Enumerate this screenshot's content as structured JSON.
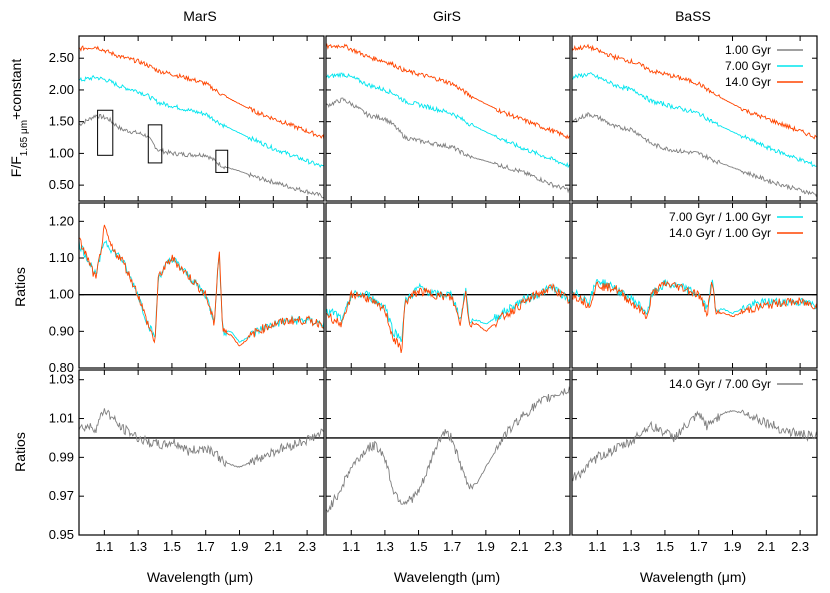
{
  "figure": {
    "columns": [
      "MarS",
      "GirS",
      "BaSS"
    ],
    "ylabel_top_prefix": "F/F",
    "ylabel_top_sub": "1.65 μm",
    "ylabel_top_suffix": "+constant",
    "ylabel_ratio": "Ratios",
    "xlabel": "Wavelength (μm)"
  },
  "colors": {
    "age_1": "#808080",
    "age_7": "#00e5ee",
    "age_14": "#ff4500",
    "ratio_14_7": "#808080"
  },
  "chart_data": [
    {
      "type": "line",
      "panel_row": "spectra",
      "xlim": [
        0.95,
        2.4
      ],
      "ylim": [
        0.25,
        2.85
      ],
      "xticks": [
        "1.1",
        "1.3",
        "1.5",
        "1.7",
        "1.9",
        "2.1",
        "2.3"
      ],
      "yticks": [
        "0.50",
        "1.00",
        "1.50",
        "2.00",
        "2.50"
      ],
      "legend_position": "top-right",
      "series": [
        {
          "name": "1.00 Gyr",
          "color_key": "age_1",
          "x": [
            0.95,
            1.05,
            1.12,
            1.2,
            1.3,
            1.35,
            1.42,
            1.5,
            1.6,
            1.7,
            1.8,
            1.9,
            2.0,
            2.1,
            2.2,
            2.3,
            2.4
          ],
          "values": {
            "MarS": [
              1.45,
              1.6,
              1.55,
              1.38,
              1.32,
              1.28,
              1.05,
              1.0,
              0.98,
              0.98,
              0.8,
              0.72,
              0.62,
              0.55,
              0.47,
              0.4,
              0.32
            ],
            "GirS": [
              1.75,
              1.85,
              1.75,
              1.6,
              1.55,
              1.45,
              1.25,
              1.2,
              1.15,
              1.1,
              0.95,
              0.88,
              0.8,
              0.72,
              0.62,
              0.5,
              0.42
            ],
            "BaSS": [
              1.5,
              1.62,
              1.55,
              1.42,
              1.38,
              1.3,
              1.15,
              1.08,
              1.03,
              1.0,
              0.88,
              0.78,
              0.68,
              0.58,
              0.5,
              0.42,
              0.35
            ]
          }
        },
        {
          "name": "7.00 Gyr",
          "color_key": "age_7",
          "x": [
            0.95,
            1.05,
            1.12,
            1.2,
            1.3,
            1.35,
            1.42,
            1.5,
            1.6,
            1.7,
            1.8,
            1.9,
            2.0,
            2.1,
            2.2,
            2.3,
            2.4
          ],
          "values": {
            "MarS": [
              2.15,
              2.2,
              2.15,
              2.05,
              1.98,
              1.92,
              1.8,
              1.75,
              1.68,
              1.62,
              1.45,
              1.32,
              1.2,
              1.08,
              0.98,
              0.88,
              0.78
            ],
            "GirS": [
              2.2,
              2.25,
              2.18,
              2.08,
              2.0,
              1.95,
              1.82,
              1.77,
              1.7,
              1.63,
              1.47,
              1.34,
              1.22,
              1.1,
              1.0,
              0.9,
              0.8
            ],
            "BaSS": [
              2.2,
              2.25,
              2.18,
              2.08,
              2.0,
              1.95,
              1.82,
              1.77,
              1.7,
              1.63,
              1.47,
              1.34,
              1.22,
              1.1,
              1.0,
              0.9,
              0.8
            ]
          }
        },
        {
          "name": "14.0 Gyr",
          "color_key": "age_14",
          "x": [
            0.95,
            1.05,
            1.12,
            1.2,
            1.3,
            1.35,
            1.42,
            1.5,
            1.6,
            1.7,
            1.8,
            1.9,
            2.0,
            2.1,
            2.2,
            2.3,
            2.4
          ],
          "values": {
            "MarS": [
              2.65,
              2.68,
              2.6,
              2.52,
              2.45,
              2.4,
              2.3,
              2.25,
              2.18,
              2.1,
              1.92,
              1.78,
              1.65,
              1.55,
              1.45,
              1.35,
              1.25
            ],
            "GirS": [
              2.68,
              2.7,
              2.62,
              2.52,
              2.45,
              2.4,
              2.3,
              2.25,
              2.18,
              2.1,
              1.92,
              1.78,
              1.65,
              1.55,
              1.45,
              1.35,
              1.25
            ],
            "BaSS": [
              2.65,
              2.68,
              2.6,
              2.52,
              2.45,
              2.4,
              2.3,
              2.25,
              2.18,
              2.1,
              1.92,
              1.78,
              1.65,
              1.55,
              1.45,
              1.35,
              1.25
            ]
          }
        }
      ],
      "annotation_boxes_MarS": [
        {
          "x": [
            1.06,
            1.15
          ],
          "y": [
            0.97,
            1.68
          ]
        },
        {
          "x": [
            1.36,
            1.44
          ],
          "y": [
            0.85,
            1.45
          ]
        },
        {
          "x": [
            1.76,
            1.83
          ],
          "y": [
            0.7,
            1.05
          ]
        }
      ]
    },
    {
      "type": "line",
      "panel_row": "ratios_vs_1gyr",
      "xlim": [
        0.95,
        2.4
      ],
      "ylim": [
        0.8,
        1.25
      ],
      "xticks": [
        "1.1",
        "1.3",
        "1.5",
        "1.7",
        "1.9",
        "2.1",
        "2.3"
      ],
      "yticks": [
        "0.80",
        "0.90",
        "1.00",
        "1.10",
        "1.20"
      ],
      "reference_line": 1.0,
      "legend_position": "top-right",
      "series": [
        {
          "name": "7.00 Gyr / 1.00 Gyr",
          "color_key": "age_7",
          "x": [
            0.95,
            1.0,
            1.05,
            1.1,
            1.15,
            1.2,
            1.25,
            1.3,
            1.35,
            1.4,
            1.42,
            1.5,
            1.6,
            1.7,
            1.75,
            1.78,
            1.8,
            1.85,
            1.9,
            2.0,
            2.1,
            2.2,
            2.3,
            2.4
          ],
          "values": {
            "MarS": [
              1.14,
              1.1,
              1.05,
              1.15,
              1.12,
              1.1,
              1.05,
              1.0,
              0.93,
              0.88,
              1.05,
              1.1,
              1.05,
              1.0,
              0.93,
              1.12,
              0.9,
              0.9,
              0.87,
              0.9,
              0.92,
              0.93,
              0.93,
              0.92
            ],
            "GirS": [
              0.95,
              0.95,
              0.93,
              1.0,
              1.0,
              1.0,
              0.98,
              0.97,
              0.9,
              0.88,
              0.98,
              1.02,
              1.0,
              1.0,
              0.93,
              1.02,
              0.93,
              0.93,
              0.92,
              0.95,
              0.98,
              1.0,
              1.02,
              0.98
            ],
            "BaSS": [
              1.0,
              1.0,
              0.98,
              1.04,
              1.03,
              1.02,
              1.0,
              0.99,
              0.97,
              0.95,
              1.0,
              1.03,
              1.02,
              1.0,
              0.96,
              1.04,
              0.96,
              0.96,
              0.95,
              0.97,
              0.98,
              0.98,
              0.98,
              0.97
            ]
          }
        },
        {
          "name": "14.0 Gyr / 1.00 Gyr",
          "color_key": "age_14",
          "x": [
            0.95,
            1.0,
            1.05,
            1.1,
            1.15,
            1.2,
            1.25,
            1.3,
            1.35,
            1.4,
            1.42,
            1.5,
            1.6,
            1.7,
            1.75,
            1.78,
            1.8,
            1.85,
            1.9,
            2.0,
            2.1,
            2.2,
            2.3,
            2.4
          ],
          "values": {
            "MarS": [
              1.15,
              1.1,
              1.04,
              1.18,
              1.12,
              1.1,
              1.05,
              1.0,
              0.93,
              0.87,
              1.05,
              1.1,
              1.05,
              1.0,
              0.92,
              1.13,
              0.9,
              0.89,
              0.86,
              0.9,
              0.92,
              0.93,
              0.93,
              0.92
            ],
            "GirS": [
              0.95,
              0.93,
              0.92,
              1.0,
              1.0,
              0.99,
              0.97,
              0.96,
              0.88,
              0.85,
              0.98,
              1.01,
              1.0,
              0.99,
              0.92,
              1.02,
              0.92,
              0.92,
              0.9,
              0.94,
              0.97,
              1.0,
              1.02,
              0.98
            ],
            "BaSS": [
              1.0,
              0.99,
              0.97,
              1.03,
              1.02,
              1.02,
              1.0,
              0.98,
              0.96,
              0.94,
              1.0,
              1.03,
              1.02,
              1.0,
              0.95,
              1.04,
              0.95,
              0.95,
              0.94,
              0.96,
              0.97,
              0.98,
              0.98,
              0.97
            ]
          }
        }
      ]
    },
    {
      "type": "line",
      "panel_row": "ratio_14_vs_7",
      "xlim": [
        0.95,
        2.4
      ],
      "ylim": [
        0.95,
        1.035
      ],
      "xticks": [
        "1.1",
        "1.3",
        "1.5",
        "1.7",
        "1.9",
        "2.1",
        "2.3"
      ],
      "yticks": [
        "0.95",
        "0.97",
        "0.99",
        "1.01",
        "1.03"
      ],
      "reference_line": 1.0,
      "legend_position": "top-right",
      "series": [
        {
          "name": "14.0 Gyr / 7.00 Gyr",
          "color_key": "ratio_14_7",
          "x": [
            0.95,
            1.0,
            1.05,
            1.1,
            1.15,
            1.2,
            1.25,
            1.3,
            1.35,
            1.4,
            1.45,
            1.5,
            1.55,
            1.6,
            1.65,
            1.7,
            1.75,
            1.8,
            1.85,
            1.9,
            2.0,
            2.1,
            2.2,
            2.3,
            2.4
          ],
          "values": {
            "MarS": [
              1.005,
              1.006,
              1.005,
              1.015,
              1.01,
              1.005,
              1.003,
              1.0,
              0.998,
              0.997,
              0.996,
              0.998,
              0.996,
              0.993,
              0.994,
              0.995,
              0.993,
              0.988,
              0.986,
              0.985,
              0.989,
              0.993,
              0.996,
              0.999,
              1.003
            ],
            "GirS": [
              0.962,
              0.968,
              0.976,
              0.985,
              0.99,
              0.995,
              0.996,
              0.99,
              0.973,
              0.967,
              0.968,
              0.972,
              0.982,
              0.995,
              1.003,
              1.0,
              0.985,
              0.975,
              0.977,
              0.985,
              1.0,
              1.01,
              1.017,
              1.022,
              1.025
            ],
            "BaSS": [
              0.979,
              0.982,
              0.986,
              0.99,
              0.992,
              0.994,
              0.996,
              0.998,
              1.002,
              1.006,
              1.005,
              1.003,
              1.0,
              1.004,
              1.008,
              1.012,
              1.006,
              1.01,
              1.013,
              1.014,
              1.012,
              1.008,
              1.004,
              1.002,
              1.0
            ]
          }
        }
      ]
    }
  ]
}
